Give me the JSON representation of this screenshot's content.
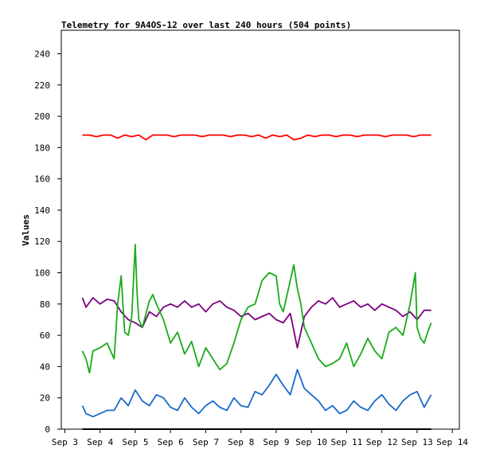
{
  "chart_data": {
    "type": "line",
    "title": "Telemetry for 9A4OS-12 over last 240 hours (504 points)",
    "xlabel": "",
    "ylabel": "Values",
    "x_ticks": [
      "Sep 3",
      "Sep 4",
      "Sep 5",
      "Sep 6",
      "Sep 7",
      "Sep 8",
      "Sep 9",
      "Sep 10",
      "Sep 11",
      "Sep 12",
      "Sep 13",
      "Sep 14"
    ],
    "x_tick_days": [
      3,
      4,
      5,
      6,
      7,
      8,
      9,
      10,
      11,
      12,
      13,
      14
    ],
    "xlim_days": [
      2.9,
      14.2
    ],
    "ylim": [
      0,
      255
    ],
    "y_ticks": [
      0,
      20,
      40,
      60,
      80,
      100,
      120,
      140,
      160,
      180,
      200,
      220,
      240
    ],
    "grid": false,
    "legend": "none",
    "series": [
      {
        "color": "#ff0000",
        "x": [
          3.5,
          3.7,
          3.9,
          4.1,
          4.3,
          4.5,
          4.7,
          4.9,
          5.1,
          5.3,
          5.5,
          5.7,
          5.9,
          6.1,
          6.3,
          6.5,
          6.7,
          6.9,
          7.1,
          7.3,
          7.5,
          7.7,
          7.9,
          8.1,
          8.3,
          8.5,
          8.7,
          8.9,
          9.1,
          9.3,
          9.5,
          9.7,
          9.9,
          10.1,
          10.3,
          10.5,
          10.7,
          10.9,
          11.1,
          11.3,
          11.5,
          11.7,
          11.9,
          12.1,
          12.3,
          12.5,
          12.7,
          12.9,
          13.1,
          13.3,
          13.4
        ],
        "y": [
          188,
          188,
          187,
          188,
          188,
          186,
          188,
          187,
          188,
          185,
          188,
          188,
          188,
          187,
          188,
          188,
          188,
          187,
          188,
          188,
          188,
          187,
          188,
          188,
          187,
          188,
          186,
          188,
          187,
          188,
          185,
          186,
          188,
          187,
          188,
          188,
          187,
          188,
          188,
          187,
          188,
          188,
          188,
          187,
          188,
          188,
          188,
          187,
          188,
          188,
          188
        ]
      },
      {
        "color": "#7b0080",
        "x": [
          3.5,
          3.6,
          3.8,
          4.0,
          4.2,
          4.4,
          4.6,
          4.8,
          5.0,
          5.2,
          5.4,
          5.6,
          5.8,
          6.0,
          6.2,
          6.4,
          6.6,
          6.8,
          7.0,
          7.2,
          7.4,
          7.6,
          7.8,
          8.0,
          8.2,
          8.4,
          8.6,
          8.8,
          9.0,
          9.2,
          9.4,
          9.6,
          9.8,
          10.0,
          10.2,
          10.4,
          10.6,
          10.8,
          11.0,
          11.2,
          11.4,
          11.6,
          11.8,
          12.0,
          12.2,
          12.4,
          12.6,
          12.8,
          13.0,
          13.2,
          13.4
        ],
        "y": [
          84,
          78,
          84,
          80,
          83,
          82,
          75,
          70,
          68,
          65,
          75,
          72,
          78,
          80,
          78,
          82,
          78,
          80,
          75,
          80,
          82,
          78,
          76,
          72,
          74,
          70,
          72,
          74,
          70,
          68,
          74,
          52,
          72,
          78,
          82,
          80,
          84,
          78,
          80,
          82,
          78,
          80,
          76,
          80,
          78,
          76,
          72,
          75,
          70,
          76,
          76
        ]
      },
      {
        "color": "#1aaa1a",
        "x": [
          3.5,
          3.6,
          3.7,
          3.8,
          4.0,
          4.2,
          4.4,
          4.5,
          4.6,
          4.7,
          4.8,
          4.9,
          5.0,
          5.05,
          5.1,
          5.2,
          5.4,
          5.5,
          5.6,
          5.8,
          6.0,
          6.2,
          6.4,
          6.6,
          6.8,
          7.0,
          7.2,
          7.4,
          7.6,
          7.8,
          8.0,
          8.2,
          8.4,
          8.6,
          8.8,
          9.0,
          9.1,
          9.2,
          9.4,
          9.5,
          9.6,
          9.7,
          9.8,
          10.0,
          10.2,
          10.4,
          10.6,
          10.8,
          11.0,
          11.2,
          11.4,
          11.6,
          11.8,
          12.0,
          12.2,
          12.4,
          12.6,
          12.8,
          12.95,
          13.0,
          13.1,
          13.2,
          13.3,
          13.4
        ],
        "y": [
          50,
          45,
          36,
          50,
          52,
          55,
          45,
          80,
          98,
          62,
          60,
          72,
          118,
          88,
          70,
          65,
          82,
          86,
          80,
          70,
          55,
          62,
          48,
          56,
          40,
          52,
          45,
          38,
          42,
          55,
          70,
          78,
          80,
          95,
          100,
          98,
          80,
          75,
          95,
          105,
          90,
          80,
          65,
          55,
          45,
          40,
          42,
          45,
          55,
          40,
          48,
          58,
          50,
          45,
          62,
          65,
          60,
          80,
          100,
          65,
          58,
          55,
          62,
          68
        ]
      },
      {
        "color": "#1a6ac8",
        "x": [
          3.5,
          3.6,
          3.8,
          4.0,
          4.2,
          4.4,
          4.6,
          4.8,
          5.0,
          5.2,
          5.4,
          5.6,
          5.8,
          6.0,
          6.2,
          6.4,
          6.6,
          6.8,
          7.0,
          7.2,
          7.4,
          7.6,
          7.8,
          8.0,
          8.2,
          8.4,
          8.6,
          8.8,
          9.0,
          9.2,
          9.4,
          9.6,
          9.8,
          10.0,
          10.2,
          10.4,
          10.6,
          10.8,
          11.0,
          11.2,
          11.4,
          11.6,
          11.8,
          12.0,
          12.2,
          12.4,
          12.6,
          12.8,
          13.0,
          13.2,
          13.4
        ],
        "y": [
          15,
          10,
          8,
          10,
          12,
          12,
          20,
          15,
          25,
          18,
          15,
          22,
          20,
          14,
          12,
          20,
          14,
          10,
          15,
          18,
          14,
          12,
          20,
          15,
          14,
          24,
          22,
          28,
          35,
          28,
          22,
          38,
          26,
          22,
          18,
          12,
          15,
          10,
          12,
          18,
          14,
          12,
          18,
          22,
          16,
          12,
          18,
          22,
          24,
          14,
          22
        ]
      },
      {
        "color": "#000000",
        "x": [
          3.5,
          13.4
        ],
        "y": [
          0,
          0
        ]
      }
    ]
  }
}
